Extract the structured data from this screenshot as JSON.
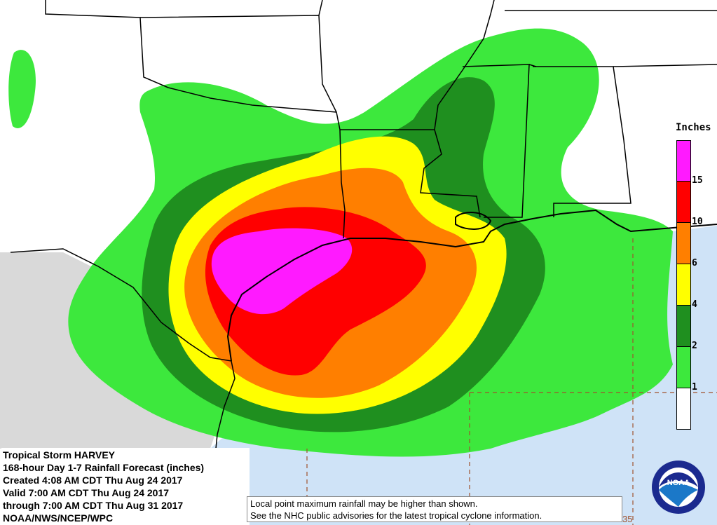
{
  "title_block": {
    "storm_name": "Tropical Storm HARVEY",
    "product": "168-hour Day 1-7 Rainfall Forecast (inches)",
    "created": "Created 4:08 AM CDT Thu Aug 24 2017",
    "valid": "Valid 7:00 AM CDT Thu Aug 24 2017",
    "through": "through 7:00 AM CDT Thu Aug 31 2017",
    "agency": "NOAA/NWS/NCEP/WPC"
  },
  "disclaimer": {
    "line1": "Local point maximum rainfall may be higher than shown.",
    "line2": "See the NHC public advisories for the latest tropical cyclone information."
  },
  "legend": {
    "title": "Inches",
    "levels": [
      {
        "label": "",
        "color": "#ff1aff"
      },
      {
        "label": "15",
        "color": "#ff0000"
      },
      {
        "label": "10",
        "color": "#ff7f00"
      },
      {
        "label": "6",
        "color": "#ffff00"
      },
      {
        "label": "4",
        "color": "#1f8f1f"
      },
      {
        "label": "2",
        "color": "#3de83d"
      },
      {
        "label": "1",
        "color": "#ffffff"
      }
    ]
  },
  "logo": {
    "text": "NOAA",
    "icon": "noaa-logo-icon"
  },
  "colors": {
    "water": "#cfe3f7",
    "mexico_land": "#d9d9d9",
    "land": "#ffffff",
    "contour_1": "#3de83d",
    "contour_2": "#1f8f1f",
    "contour_4": "#ffff00",
    "contour_6": "#ff7f00",
    "contour_10": "#ff0000",
    "contour_15": "#ff1aff",
    "grid_line": "#a0522d"
  },
  "partial_label": "35"
}
